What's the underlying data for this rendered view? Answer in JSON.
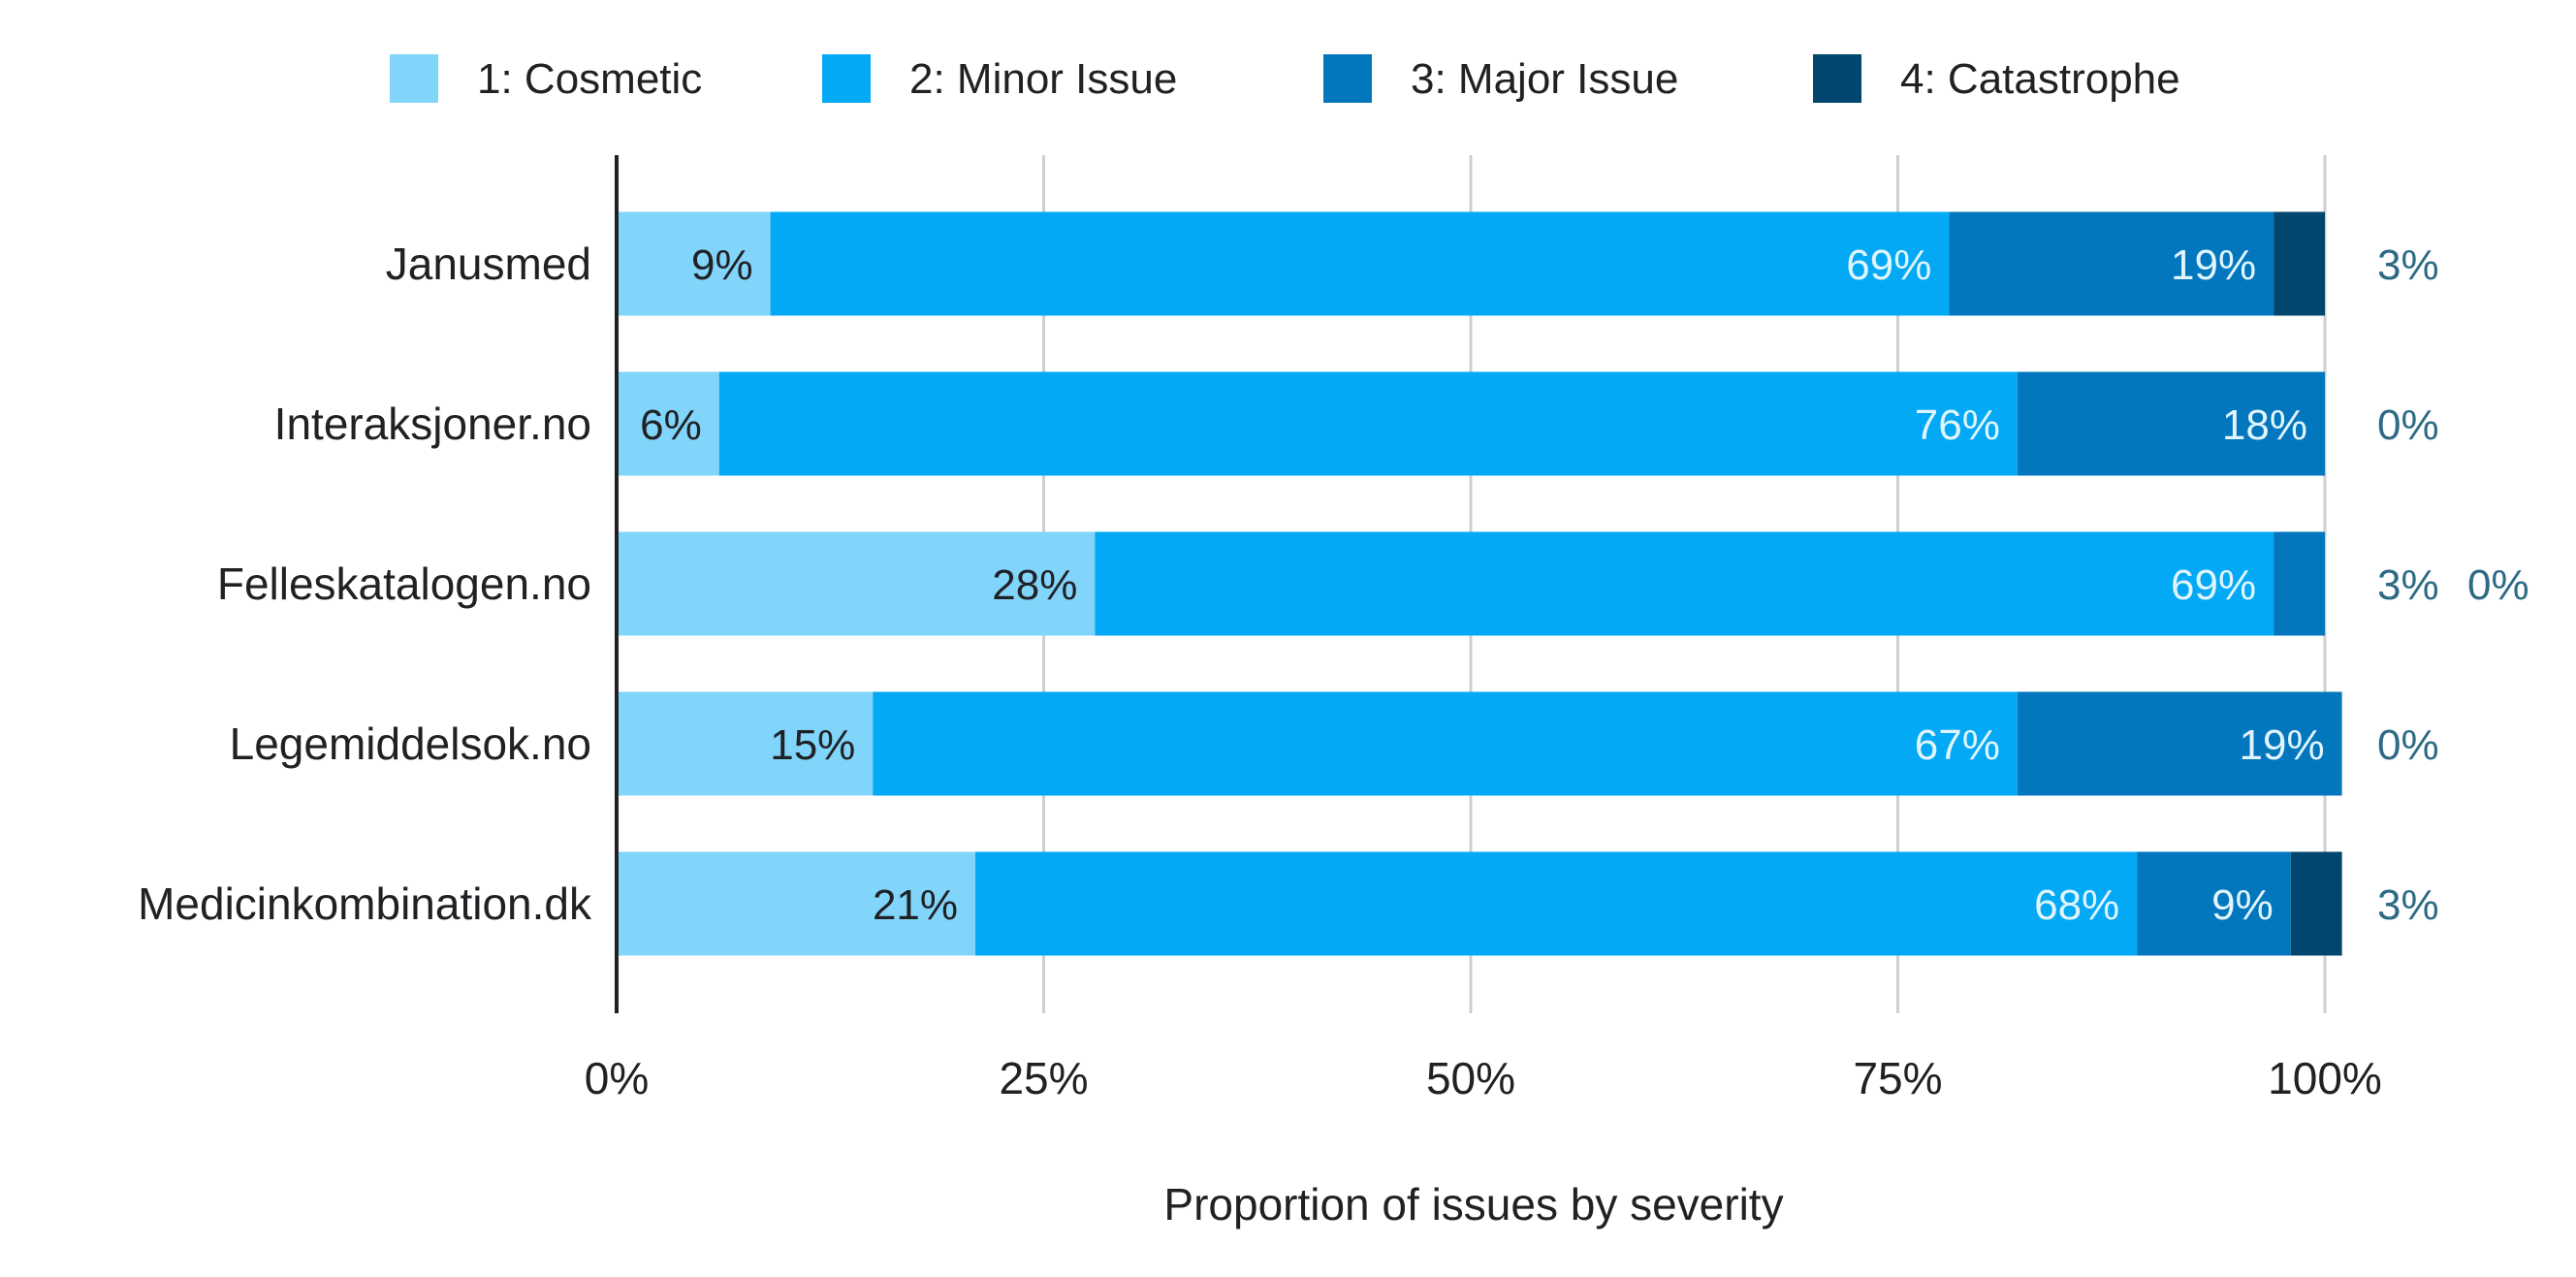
{
  "chart_data": {
    "type": "bar",
    "orientation": "horizontal",
    "stacked": true,
    "normalized": true,
    "xlabel": "Proportion of issues by severity",
    "ylabel": "",
    "xlim": [
      0,
      100
    ],
    "xticks": [
      "0%",
      "25%",
      "50%",
      "75%",
      "100%"
    ],
    "grid": true,
    "legend_position": "top",
    "categories": [
      "Janusmed",
      "Interaksjoner.no",
      "Felleskatalogen.no",
      "Legemiddelsok.no",
      "Medicinkombination.dk"
    ],
    "series": [
      {
        "name": "1: Cosmetic",
        "color": "#81d4fa",
        "values": [
          9,
          6,
          28,
          15,
          21
        ],
        "labels": [
          "9%",
          "6%",
          "28%",
          "15%",
          "21%"
        ],
        "label_color": "#202124"
      },
      {
        "name": "2: Minor Issue",
        "color": "#03a9f4",
        "values": [
          69,
          76,
          69,
          67,
          68
        ],
        "labels": [
          "69%",
          "76%",
          "69%",
          "67%",
          "68%"
        ],
        "label_color": "#e1f5fe"
      },
      {
        "name": "3: Major Issue",
        "color": "#0277bd",
        "values": [
          19,
          18,
          3,
          19,
          9
        ],
        "labels": [
          "19%",
          "18%",
          "3%",
          "19%",
          "9%"
        ],
        "label_color": "#e1f5fe"
      },
      {
        "name": "4: Catastrophe",
        "color": "#01466e",
        "values": [
          3,
          0,
          0,
          0,
          3
        ],
        "labels": [
          "3%",
          "0%",
          "0%",
          "0%",
          "3%"
        ],
        "label_color": "#2e6a86"
      }
    ]
  }
}
